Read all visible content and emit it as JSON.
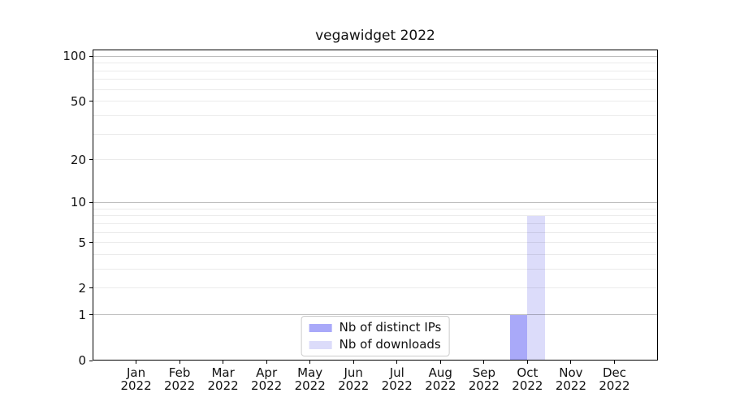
{
  "figure": {
    "title": "vegawidget 2022"
  },
  "chart_data": {
    "type": "bar",
    "title": "vegawidget 2022",
    "x_categories": [
      "Jan",
      "Feb",
      "Mar",
      "Apr",
      "May",
      "Jun",
      "Jul",
      "Aug",
      "Sep",
      "Oct",
      "Nov",
      "Dec"
    ],
    "x_year_label": "2022",
    "series": [
      {
        "name": "Nb of distinct IPs",
        "color": "#a9a9f9",
        "values": [
          0,
          0,
          0,
          0,
          0,
          0,
          0,
          0,
          0,
          1,
          0,
          0
        ]
      },
      {
        "name": "Nb of downloads",
        "color": "#dcdcfa",
        "values": [
          0,
          0,
          0,
          0,
          0,
          0,
          0,
          0,
          0,
          8,
          0,
          0
        ]
      }
    ],
    "y_axis": {
      "scale": "log1p",
      "tick_values": [
        0,
        1,
        2,
        5,
        10,
        20,
        50,
        100
      ],
      "tick_labels": [
        "0",
        "1",
        "2",
        "5",
        "10",
        "20",
        "50",
        "100"
      ],
      "major_gridlines": [
        1,
        10,
        100
      ],
      "minor_gridlines": [
        2,
        3,
        4,
        5,
        6,
        7,
        8,
        9,
        20,
        30,
        40,
        50,
        60,
        70,
        80,
        90
      ],
      "min": 0,
      "max": 111
    },
    "grid": "both",
    "legend": {
      "position": "lower center",
      "items": [
        "Nb of distinct IPs",
        "Nb of downloads"
      ]
    }
  },
  "colors": {
    "bar_distinct_ips": "#a9a9f9",
    "bar_downloads": "#dcdcfa",
    "grid_major": "rgba(0,0,0,0.26)",
    "grid_minor": "rgba(0,0,0,0.08)",
    "spine": "#000000",
    "text": "#111111",
    "legend_border": "#cccccc"
  }
}
